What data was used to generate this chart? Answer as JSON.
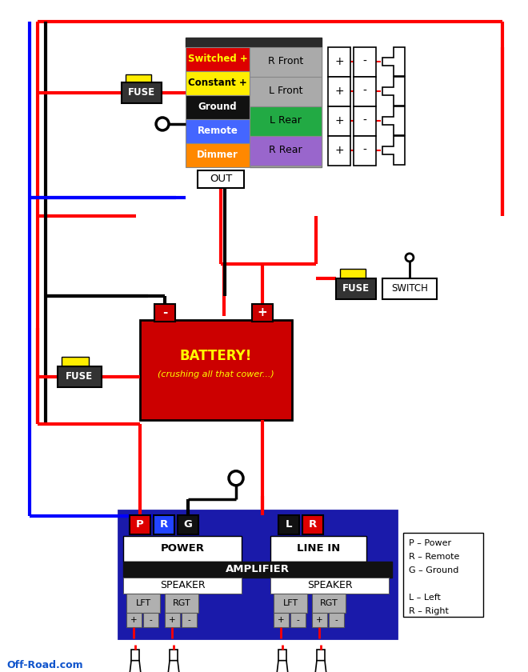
{
  "bg_color": "#ffffff",
  "watermark": "Off-Road.com",
  "head_rows": [
    {
      "label": "Switched +",
      "bg": "#dd0000",
      "fg": "#ffff00"
    },
    {
      "label": "Constant +",
      "bg": "#ffee00",
      "fg": "#000000"
    },
    {
      "label": "Ground",
      "bg": "#111111",
      "fg": "#ffffff"
    },
    {
      "label": "Remote",
      "bg": "#4466ff",
      "fg": "#ffffff"
    },
    {
      "label": "Dimmer",
      "bg": "#ff8800",
      "fg": "#ffffff"
    }
  ],
  "speaker_rows": [
    {
      "label": "R Front",
      "bg": "#aaaaaa"
    },
    {
      "label": "L Front",
      "bg": "#aaaaaa"
    },
    {
      "label": "L Rear",
      "bg": "#22aa44"
    },
    {
      "label": "R Rear",
      "bg": "#9966cc"
    }
  ],
  "amp_connectors": [
    {
      "label": "P",
      "bg": "#dd0000",
      "fg": "#ffffff"
    },
    {
      "label": "R",
      "bg": "#2244ff",
      "fg": "#ffffff"
    },
    {
      "label": "G",
      "bg": "#111111",
      "fg": "#ffffff"
    },
    {
      "label": "L",
      "bg": "#111111",
      "fg": "#ffffff"
    },
    {
      "label": "R",
      "bg": "#dd0000",
      "fg": "#ffffff"
    }
  ],
  "legend": [
    "P – Power",
    "R – Remote",
    "G – Ground",
    "",
    "L – Left",
    "R – Right"
  ]
}
